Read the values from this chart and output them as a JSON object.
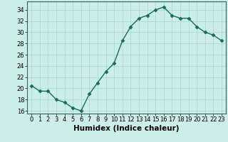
{
  "x": [
    0,
    1,
    2,
    3,
    4,
    5,
    6,
    7,
    8,
    9,
    10,
    11,
    12,
    13,
    14,
    15,
    16,
    17,
    18,
    19,
    20,
    21,
    22,
    23
  ],
  "y": [
    20.5,
    19.5,
    19.5,
    18.0,
    17.5,
    16.5,
    16.0,
    19.0,
    21.0,
    23.0,
    24.5,
    28.5,
    31.0,
    32.5,
    33.0,
    34.0,
    34.5,
    33.0,
    32.5,
    32.5,
    31.0,
    30.0,
    29.5,
    28.5
  ],
  "line_color": "#1a6b5a",
  "marker": "D",
  "marker_size": 2.5,
  "background_color": "#cceee8",
  "grid_color": "#aaddcc",
  "xlabel": "Humidex (Indice chaleur)",
  "xlabel_fontsize": 7.5,
  "yticks": [
    16,
    18,
    20,
    22,
    24,
    26,
    28,
    30,
    32,
    34
  ],
  "xticks": [
    0,
    1,
    2,
    3,
    4,
    5,
    6,
    7,
    8,
    9,
    10,
    11,
    12,
    13,
    14,
    15,
    16,
    17,
    18,
    19,
    20,
    21,
    22,
    23
  ],
  "xtick_labels": [
    "0",
    "1",
    "2",
    "3",
    "4",
    "5",
    "6",
    "7",
    "8",
    "9",
    "10",
    "11",
    "12",
    "13",
    "14",
    "15",
    "16",
    "17",
    "18",
    "19",
    "20",
    "21",
    "22",
    "23"
  ],
  "ylim": [
    15.5,
    35.5
  ],
  "xlim": [
    -0.5,
    23.5
  ],
  "tick_fontsize": 6,
  "linewidth": 1.0
}
